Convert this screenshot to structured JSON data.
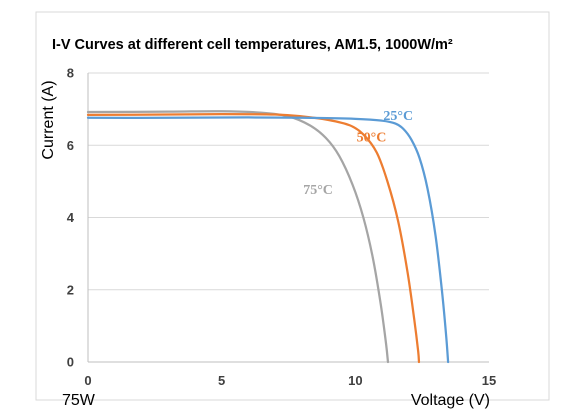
{
  "chart_data": {
    "type": "line",
    "title": "I-V Curves at different cell temperatures, AM1.5, 1000W/m²",
    "xlabel": "Voltage (V)",
    "ylabel": "Current (A)",
    "xlim": [
      0,
      15
    ],
    "ylim": [
      0,
      8
    ],
    "x_ticks": [
      "0",
      "5",
      "10",
      "15"
    ],
    "y_ticks": [
      "0",
      "2",
      "4",
      "6",
      "8"
    ],
    "grid": "horizontal",
    "footnote": "75W",
    "series": [
      {
        "label": "25°C",
        "color": "#5b9bd5",
        "points": [
          [
            0,
            6.76
          ],
          [
            3,
            6.76
          ],
          [
            6,
            6.77
          ],
          [
            8,
            6.76
          ],
          [
            10,
            6.73
          ],
          [
            11,
            6.68
          ],
          [
            11.5,
            6.6
          ],
          [
            11.8,
            6.45
          ],
          [
            12.1,
            6.15
          ],
          [
            12.4,
            5.65
          ],
          [
            12.7,
            4.8
          ],
          [
            13.0,
            3.5
          ],
          [
            13.25,
            1.9
          ],
          [
            13.4,
            0.7
          ],
          [
            13.47,
            0
          ]
        ]
      },
      {
        "label": "50°C",
        "color": "#ed7d31",
        "points": [
          [
            0,
            6.84
          ],
          [
            3,
            6.85
          ],
          [
            5,
            6.86
          ],
          [
            7,
            6.85
          ],
          [
            8,
            6.8
          ],
          [
            9,
            6.7
          ],
          [
            9.8,
            6.55
          ],
          [
            10.3,
            6.3
          ],
          [
            10.8,
            5.8
          ],
          [
            11.2,
            5.0
          ],
          [
            11.6,
            3.9
          ],
          [
            11.95,
            2.5
          ],
          [
            12.2,
            1.2
          ],
          [
            12.35,
            0.3
          ],
          [
            12.38,
            0
          ]
        ]
      },
      {
        "label": "75°C",
        "color": "#a5a5a5",
        "points": [
          [
            0,
            6.92
          ],
          [
            3,
            6.93
          ],
          [
            5,
            6.94
          ],
          [
            6.5,
            6.9
          ],
          [
            7.5,
            6.8
          ],
          [
            8.3,
            6.55
          ],
          [
            8.9,
            6.2
          ],
          [
            9.4,
            5.7
          ],
          [
            9.9,
            4.9
          ],
          [
            10.3,
            4.0
          ],
          [
            10.65,
            2.9
          ],
          [
            10.95,
            1.6
          ],
          [
            11.15,
            0.5
          ],
          [
            11.22,
            0
          ]
        ]
      }
    ]
  },
  "colors": {
    "grid": "#d9d9d9",
    "axis": "#bfbfbf",
    "frame_border": "#d9d9d9"
  }
}
